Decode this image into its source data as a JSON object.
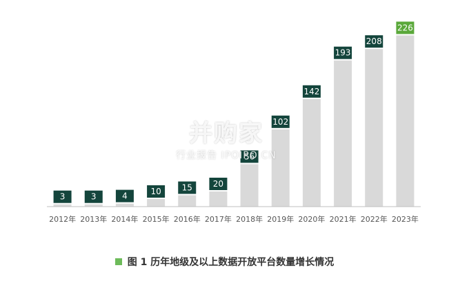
{
  "chart_data": {
    "type": "bar",
    "categories": [
      "2012年",
      "2013年",
      "2014年",
      "2015年",
      "2016年",
      "2017年",
      "2018年",
      "2019年",
      "2020年",
      "2021年",
      "2022年",
      "2023年"
    ],
    "values": [
      3,
      3,
      4,
      10,
      15,
      20,
      56,
      102,
      142,
      193,
      208,
      226
    ],
    "title": "图 1  历年地级及以上数据开放平台数量增长情况",
    "xlabel": "",
    "ylabel": "",
    "ylim": [
      0,
      240
    ],
    "grid": false,
    "bar_color": "#d9d9d9",
    "label_color": "#14453c",
    "highlight_color": "#5aa83a",
    "highlight_index": 11
  },
  "watermark": {
    "brand": "并购家",
    "subtitle": "行业报告 IPOIPO.CN"
  },
  "caption": {
    "square_color": "#6dbb5a"
  }
}
